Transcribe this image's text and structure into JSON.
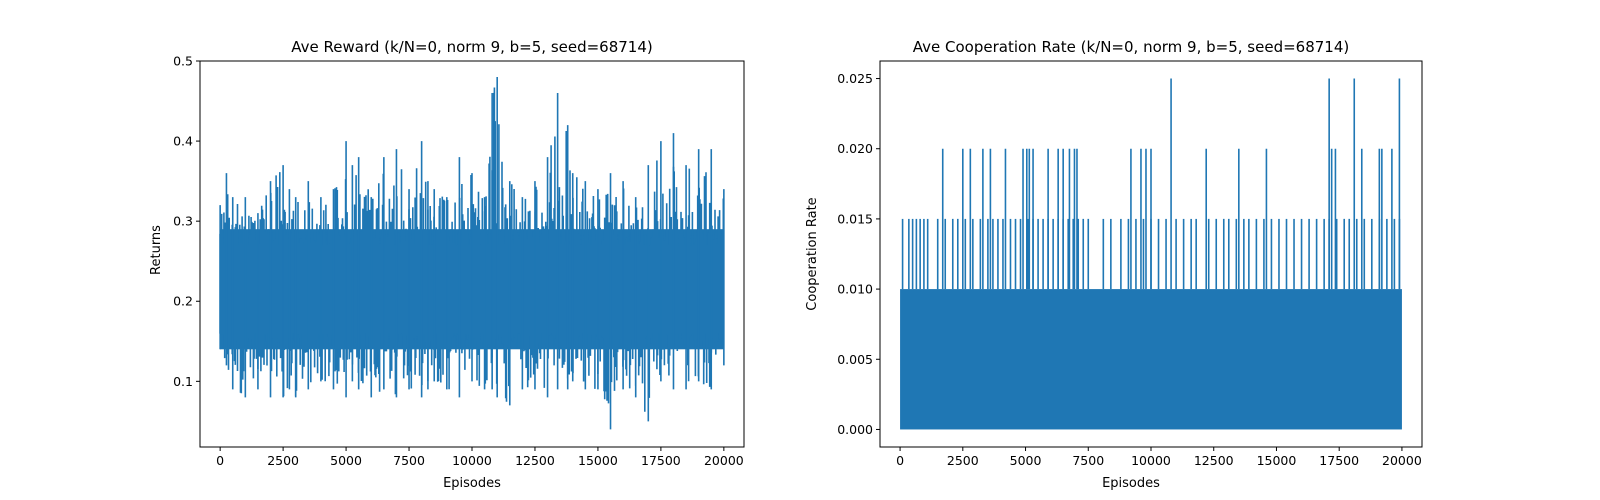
{
  "chart_data": [
    {
      "type": "line",
      "title": "Ave Reward (k/N=0, norm 9, b=5, seed=68714)",
      "xlabel": "Episodes",
      "ylabel": "Returns",
      "xlim": [
        -800,
        20800
      ],
      "ylim": [
        0.018,
        0.5
      ],
      "xticks": [
        0,
        2500,
        5000,
        7500,
        10000,
        12500,
        15000,
        17500,
        20000
      ],
      "xtick_labels": [
        "0",
        "2500",
        "5000",
        "7500",
        "10000",
        "12500",
        "15000",
        "17500",
        "20000"
      ],
      "yticks": [
        0.1,
        0.2,
        0.3,
        0.4,
        0.5
      ],
      "ytick_labels": [
        "0.1",
        "0.2",
        "0.3",
        "0.4",
        "0.5"
      ],
      "series": [
        {
          "color": "#1f77b4",
          "x": [
            0,
            250,
            500,
            1000,
            1500,
            2000,
            2500,
            2750,
            3000,
            3500,
            4000,
            4500,
            5000,
            5250,
            5500,
            6000,
            6500,
            7000,
            7500,
            8000,
            8250,
            8500,
            9000,
            9500,
            10000,
            10500,
            10800,
            11000,
            11500,
            12000,
            12500,
            13000,
            13400,
            13800,
            14000,
            14500,
            15000,
            15500,
            16000,
            16500,
            17000,
            17500,
            18000,
            18500,
            19000,
            19500,
            20000
          ],
          "y_min": [
            0.14,
            0.12,
            0.09,
            0.08,
            0.09,
            0.08,
            0.08,
            0.09,
            0.08,
            0.09,
            0.1,
            0.09,
            0.08,
            0.1,
            0.09,
            0.08,
            0.09,
            0.08,
            0.09,
            0.08,
            0.09,
            0.1,
            0.09,
            0.08,
            0.1,
            0.09,
            0.09,
            0.08,
            0.07,
            0.09,
            0.09,
            0.08,
            0.09,
            0.09,
            0.1,
            0.09,
            0.09,
            0.04,
            0.09,
            0.08,
            0.05,
            0.1,
            0.09,
            0.09,
            0.1,
            0.09,
            0.12
          ],
          "y_max": [
            0.32,
            0.36,
            0.33,
            0.33,
            0.31,
            0.35,
            0.37,
            0.34,
            0.33,
            0.35,
            0.33,
            0.34,
            0.4,
            0.37,
            0.38,
            0.33,
            0.38,
            0.39,
            0.34,
            0.4,
            0.35,
            0.34,
            0.33,
            0.38,
            0.36,
            0.33,
            0.46,
            0.48,
            0.35,
            0.33,
            0.35,
            0.38,
            0.46,
            0.42,
            0.36,
            0.35,
            0.34,
            0.36,
            0.35,
            0.33,
            0.37,
            0.4,
            0.41,
            0.37,
            0.39,
            0.39,
            0.34
          ]
        }
      ]
    },
    {
      "type": "line",
      "title": "Ave Cooperation Rate (k/N=0, norm 9, b=5, seed=68714)",
      "xlabel": "Episodes",
      "ylabel": "Cooperation Rate",
      "xlim": [
        -800,
        20800
      ],
      "ylim": [
        -0.00125,
        0.02625
      ],
      "xticks": [
        0,
        2500,
        5000,
        7500,
        10000,
        12500,
        15000,
        17500,
        20000
      ],
      "xtick_labels": [
        "0",
        "2500",
        "5000",
        "7500",
        "10000",
        "12500",
        "15000",
        "17500",
        "20000"
      ],
      "yticks": [
        0.0,
        0.005,
        0.01,
        0.015,
        0.02,
        0.025
      ],
      "ytick_labels": [
        "0.000",
        "0.005",
        "0.010",
        "0.015",
        "0.020",
        "0.025"
      ],
      "series": [
        {
          "color": "#1f77b4",
          "band": [
            0.0,
            0.01
          ],
          "spikes_015": [
            100,
            350,
            500,
            650,
            800,
            950,
            1100,
            1500,
            1800,
            2100,
            2300,
            2600,
            2900,
            3200,
            3500,
            3700,
            3900,
            4100,
            4400,
            4600,
            4800,
            5100,
            5300,
            5500,
            5700,
            5900,
            6100,
            6300,
            6500,
            6700,
            6900,
            7100,
            7300,
            7500,
            8100,
            8400,
            8800,
            9100,
            9400,
            9700,
            10000,
            10300,
            10600,
            11000,
            11300,
            11600,
            11800,
            12300,
            12600,
            12900,
            13100,
            13400,
            13700,
            13900,
            14200,
            14500,
            14800,
            15100,
            15400,
            15700,
            16000,
            16300,
            16600,
            16900,
            17100,
            17400,
            17700,
            17900,
            18200,
            18500,
            18800,
            19100,
            19400,
            19700,
            19900
          ],
          "spikes_020": [
            1700,
            2500,
            2800,
            3300,
            3600,
            4200,
            4900,
            5050,
            5150,
            5300,
            5900,
            6300,
            6500,
            6750,
            6950,
            7050,
            9200,
            9600,
            9800,
            10000,
            12200,
            13500,
            14600,
            17200,
            17350,
            18400,
            19100,
            19200,
            19600
          ],
          "spikes_025": [
            10800,
            17100,
            18100,
            19900
          ]
        }
      ]
    }
  ]
}
